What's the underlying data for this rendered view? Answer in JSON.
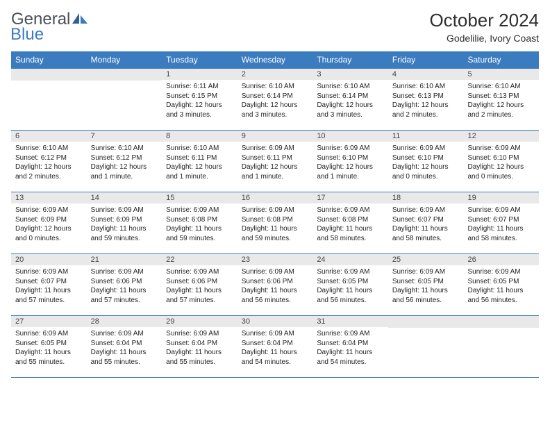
{
  "logo": {
    "word1": "General",
    "word2": "Blue"
  },
  "title": "October 2024",
  "location": "Godelilie, Ivory Coast",
  "colors": {
    "brand_blue": "#3b7bbf",
    "bar_grey": "#e9e9e9",
    "text": "#222222"
  },
  "dow": [
    "Sunday",
    "Monday",
    "Tuesday",
    "Wednesday",
    "Thursday",
    "Friday",
    "Saturday"
  ],
  "weeks": [
    [
      null,
      null,
      {
        "n": "1",
        "sr": "Sunrise: 6:11 AM",
        "ss": "Sunset: 6:15 PM",
        "d1": "Daylight: 12 hours",
        "d2": "and 3 minutes."
      },
      {
        "n": "2",
        "sr": "Sunrise: 6:10 AM",
        "ss": "Sunset: 6:14 PM",
        "d1": "Daylight: 12 hours",
        "d2": "and 3 minutes."
      },
      {
        "n": "3",
        "sr": "Sunrise: 6:10 AM",
        "ss": "Sunset: 6:14 PM",
        "d1": "Daylight: 12 hours",
        "d2": "and 3 minutes."
      },
      {
        "n": "4",
        "sr": "Sunrise: 6:10 AM",
        "ss": "Sunset: 6:13 PM",
        "d1": "Daylight: 12 hours",
        "d2": "and 2 minutes."
      },
      {
        "n": "5",
        "sr": "Sunrise: 6:10 AM",
        "ss": "Sunset: 6:13 PM",
        "d1": "Daylight: 12 hours",
        "d2": "and 2 minutes."
      }
    ],
    [
      {
        "n": "6",
        "sr": "Sunrise: 6:10 AM",
        "ss": "Sunset: 6:12 PM",
        "d1": "Daylight: 12 hours",
        "d2": "and 2 minutes."
      },
      {
        "n": "7",
        "sr": "Sunrise: 6:10 AM",
        "ss": "Sunset: 6:12 PM",
        "d1": "Daylight: 12 hours",
        "d2": "and 1 minute."
      },
      {
        "n": "8",
        "sr": "Sunrise: 6:10 AM",
        "ss": "Sunset: 6:11 PM",
        "d1": "Daylight: 12 hours",
        "d2": "and 1 minute."
      },
      {
        "n": "9",
        "sr": "Sunrise: 6:09 AM",
        "ss": "Sunset: 6:11 PM",
        "d1": "Daylight: 12 hours",
        "d2": "and 1 minute."
      },
      {
        "n": "10",
        "sr": "Sunrise: 6:09 AM",
        "ss": "Sunset: 6:10 PM",
        "d1": "Daylight: 12 hours",
        "d2": "and 1 minute."
      },
      {
        "n": "11",
        "sr": "Sunrise: 6:09 AM",
        "ss": "Sunset: 6:10 PM",
        "d1": "Daylight: 12 hours",
        "d2": "and 0 minutes."
      },
      {
        "n": "12",
        "sr": "Sunrise: 6:09 AM",
        "ss": "Sunset: 6:10 PM",
        "d1": "Daylight: 12 hours",
        "d2": "and 0 minutes."
      }
    ],
    [
      {
        "n": "13",
        "sr": "Sunrise: 6:09 AM",
        "ss": "Sunset: 6:09 PM",
        "d1": "Daylight: 12 hours",
        "d2": "and 0 minutes."
      },
      {
        "n": "14",
        "sr": "Sunrise: 6:09 AM",
        "ss": "Sunset: 6:09 PM",
        "d1": "Daylight: 11 hours",
        "d2": "and 59 minutes."
      },
      {
        "n": "15",
        "sr": "Sunrise: 6:09 AM",
        "ss": "Sunset: 6:08 PM",
        "d1": "Daylight: 11 hours",
        "d2": "and 59 minutes."
      },
      {
        "n": "16",
        "sr": "Sunrise: 6:09 AM",
        "ss": "Sunset: 6:08 PM",
        "d1": "Daylight: 11 hours",
        "d2": "and 59 minutes."
      },
      {
        "n": "17",
        "sr": "Sunrise: 6:09 AM",
        "ss": "Sunset: 6:08 PM",
        "d1": "Daylight: 11 hours",
        "d2": "and 58 minutes."
      },
      {
        "n": "18",
        "sr": "Sunrise: 6:09 AM",
        "ss": "Sunset: 6:07 PM",
        "d1": "Daylight: 11 hours",
        "d2": "and 58 minutes."
      },
      {
        "n": "19",
        "sr": "Sunrise: 6:09 AM",
        "ss": "Sunset: 6:07 PM",
        "d1": "Daylight: 11 hours",
        "d2": "and 58 minutes."
      }
    ],
    [
      {
        "n": "20",
        "sr": "Sunrise: 6:09 AM",
        "ss": "Sunset: 6:07 PM",
        "d1": "Daylight: 11 hours",
        "d2": "and 57 minutes."
      },
      {
        "n": "21",
        "sr": "Sunrise: 6:09 AM",
        "ss": "Sunset: 6:06 PM",
        "d1": "Daylight: 11 hours",
        "d2": "and 57 minutes."
      },
      {
        "n": "22",
        "sr": "Sunrise: 6:09 AM",
        "ss": "Sunset: 6:06 PM",
        "d1": "Daylight: 11 hours",
        "d2": "and 57 minutes."
      },
      {
        "n": "23",
        "sr": "Sunrise: 6:09 AM",
        "ss": "Sunset: 6:06 PM",
        "d1": "Daylight: 11 hours",
        "d2": "and 56 minutes."
      },
      {
        "n": "24",
        "sr": "Sunrise: 6:09 AM",
        "ss": "Sunset: 6:05 PM",
        "d1": "Daylight: 11 hours",
        "d2": "and 56 minutes."
      },
      {
        "n": "25",
        "sr": "Sunrise: 6:09 AM",
        "ss": "Sunset: 6:05 PM",
        "d1": "Daylight: 11 hours",
        "d2": "and 56 minutes."
      },
      {
        "n": "26",
        "sr": "Sunrise: 6:09 AM",
        "ss": "Sunset: 6:05 PM",
        "d1": "Daylight: 11 hours",
        "d2": "and 56 minutes."
      }
    ],
    [
      {
        "n": "27",
        "sr": "Sunrise: 6:09 AM",
        "ss": "Sunset: 6:05 PM",
        "d1": "Daylight: 11 hours",
        "d2": "and 55 minutes."
      },
      {
        "n": "28",
        "sr": "Sunrise: 6:09 AM",
        "ss": "Sunset: 6:04 PM",
        "d1": "Daylight: 11 hours",
        "d2": "and 55 minutes."
      },
      {
        "n": "29",
        "sr": "Sunrise: 6:09 AM",
        "ss": "Sunset: 6:04 PM",
        "d1": "Daylight: 11 hours",
        "d2": "and 55 minutes."
      },
      {
        "n": "30",
        "sr": "Sunrise: 6:09 AM",
        "ss": "Sunset: 6:04 PM",
        "d1": "Daylight: 11 hours",
        "d2": "and 54 minutes."
      },
      {
        "n": "31",
        "sr": "Sunrise: 6:09 AM",
        "ss": "Sunset: 6:04 PM",
        "d1": "Daylight: 11 hours",
        "d2": "and 54 minutes."
      },
      null,
      null
    ]
  ]
}
